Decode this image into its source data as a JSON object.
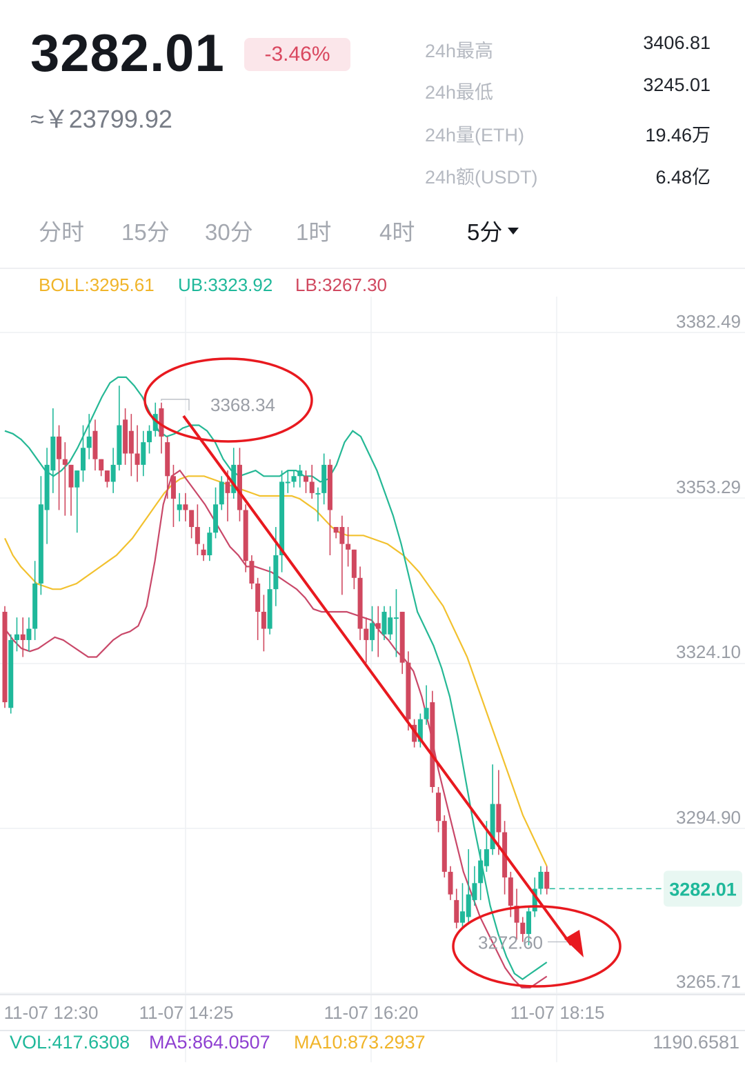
{
  "header": {
    "price": "3282.01",
    "change": "-3.46%",
    "cny": "≈￥23799.92",
    "stats": [
      {
        "label": "24h最高",
        "value": "3406.81"
      },
      {
        "label": "24h最低",
        "value": "3245.01"
      },
      {
        "label": "24h量(ETH)",
        "value": "19.46万"
      },
      {
        "label": "24h额(USDT)",
        "value": "6.48亿"
      }
    ]
  },
  "tabs": [
    "分时",
    "15分",
    "30分",
    "1时",
    "4时",
    "5分"
  ],
  "active_tab": "5分",
  "indicators": {
    "boll": "BOLL:3295.61",
    "ub": "UB:3323.92",
    "lb": "LB:3267.30"
  },
  "volume": {
    "vol": "VOL:417.6308",
    "ma5": "MA5:864.0507",
    "ma10": "MA10:873.2937",
    "max": "1190.6581"
  },
  "colors": {
    "up": "#1fb89a",
    "down": "#d0485f",
    "boll": "#f2c12e",
    "ub": "#25b895",
    "lb": "#c94869",
    "annotation": "#e8191f"
  },
  "chart_data": {
    "type": "candlestick",
    "y_ticks": [
      "3382.49",
      "3353.29",
      "3324.10",
      "3294.90",
      "3265.71"
    ],
    "y_tick_values": [
      3382.49,
      3353.29,
      3324.1,
      3294.9,
      3265.71
    ],
    "x_ticks": [
      "11-07 12:30",
      "11-07 14:25",
      "11-07 16:20",
      "11-07 18:15"
    ],
    "current_price_label": "3282.01",
    "current_price": 3282.01,
    "high_marker": {
      "label": "3368.34",
      "value": 3368.34
    },
    "low_marker": {
      "label": "3272.60",
      "value": 3272.6
    },
    "candles": [
      [
        3331.0,
        3315.0,
        3332.0,
        3314.0
      ],
      [
        3314.0,
        3326.0,
        3327.0,
        3313.0
      ],
      [
        3326.0,
        3327.0,
        3330.0,
        3324.0
      ],
      [
        3327.0,
        3326.0,
        3330.0,
        3323.0
      ],
      [
        3326.0,
        3328.0,
        3330.0,
        3324.0
      ],
      [
        3328.0,
        3336.0,
        3340.0,
        3326.0
      ],
      [
        3336.0,
        3350.0,
        3355.0,
        3334.0
      ],
      [
        3349.0,
        3357.0,
        3360.0,
        3343.0
      ],
      [
        3356.0,
        3362.0,
        3367.0,
        3352.0
      ],
      [
        3362.0,
        3358.0,
        3364.0,
        3349.0
      ],
      [
        3358.0,
        3357.0,
        3361.0,
        3348.0
      ],
      [
        3357.0,
        3353.0,
        3357.0,
        3348.0
      ],
      [
        3353.0,
        3356.0,
        3356.0,
        3345.0
      ],
      [
        3356.0,
        3360.0,
        3364.0,
        3354.0
      ],
      [
        3360.0,
        3362.0,
        3366.0,
        3358.0
      ],
      [
        3363.0,
        3358.0,
        3365.0,
        3356.0
      ],
      [
        3358.0,
        3356.0,
        3358.0,
        3355.0
      ],
      [
        3356.0,
        3354.0,
        3356.0,
        3353.0
      ],
      [
        3354.0,
        3357.0,
        3360.0,
        3352.0
      ],
      [
        3357.0,
        3364.0,
        3371.0,
        3356.0
      ],
      [
        3365.0,
        3359.0,
        3367.0,
        3357.0
      ],
      [
        3363.0,
        3359.0,
        3366.0,
        3355.0
      ],
      [
        3359.0,
        3357.0,
        3364.0,
        3354.0
      ],
      [
        3357.0,
        3361.0,
        3363.0,
        3355.0
      ],
      [
        3361.0,
        3363.0,
        3364.0,
        3359.0
      ],
      [
        3363.0,
        3366.0,
        3368.0,
        3362.0
      ],
      [
        3367.0,
        3362.0,
        3368.0,
        3359.0
      ],
      [
        3361.0,
        3355.0,
        3362.0,
        3351.0
      ],
      [
        3355.0,
        3351.0,
        3357.0,
        3346.0
      ],
      [
        3349.0,
        3350.0,
        3352.0,
        3347.0
      ],
      [
        3350.0,
        3349.0,
        3352.0,
        3347.0
      ],
      [
        3349.0,
        3346.0,
        3349.0,
        3344.0
      ],
      [
        3346.0,
        3343.0,
        3350.0,
        3341.0
      ],
      [
        3342.0,
        3341.0,
        3343.0,
        3340.0
      ],
      [
        3341.0,
        3345.0,
        3346.0,
        3340.0
      ],
      [
        3345.0,
        3350.0,
        3353.0,
        3344.0
      ],
      [
        3350.0,
        3354.0,
        3355.0,
        3349.0
      ],
      [
        3354.0,
        3352.0,
        3356.0,
        3347.0
      ],
      [
        3352.0,
        3357.0,
        3360.0,
        3351.0
      ],
      [
        3357.0,
        3349.0,
        3360.0,
        3347.0
      ],
      [
        3349.0,
        3340.0,
        3350.0,
        3338.0
      ],
      [
        3340.0,
        3336.0,
        3341.0,
        3335.0
      ],
      [
        3336.0,
        3331.0,
        3337.0,
        3326.0
      ],
      [
        3331.0,
        3328.0,
        3334.0,
        3324.0
      ],
      [
        3328.0,
        3335.0,
        3339.0,
        3327.0
      ],
      [
        3335.0,
        3341.0,
        3346.0,
        3332.0
      ],
      [
        3341.0,
        3354.0,
        3356.0,
        3338.0
      ],
      [
        3354.0,
        3354.0,
        3356.0,
        3352.0
      ],
      [
        3354.0,
        3355.0,
        3356.0,
        3353.0
      ],
      [
        3355.0,
        3356.0,
        3357.0,
        3353.0
      ],
      [
        3355.0,
        3354.0,
        3356.0,
        3352.0
      ],
      [
        3354.0,
        3352.0,
        3357.0,
        3351.0
      ],
      [
        3352.0,
        3352.0,
        3353.0,
        3347.0
      ],
      [
        3352.0,
        3357.0,
        3359.0,
        3350.0
      ],
      [
        3357.0,
        3349.0,
        3358.0,
        3341.0
      ],
      [
        3346.0,
        3345.0,
        3346.0,
        3344.0
      ],
      [
        3346.0,
        3343.0,
        3348.0,
        3334.0
      ],
      [
        3343.0,
        3342.0,
        3346.0,
        3339.0
      ],
      [
        3342.0,
        3337.0,
        3342.0,
        3335.0
      ],
      [
        3337.0,
        3328.0,
        3339.0,
        3326.0
      ],
      [
        3328.0,
        3326.0,
        3330.0,
        3322.0
      ],
      [
        3326.0,
        3329.0,
        3332.0,
        3324.0
      ],
      [
        3329.0,
        3328.0,
        3332.0,
        3323.0
      ],
      [
        3327.0,
        3331.0,
        3332.0,
        3326.0
      ],
      [
        3327.0,
        3330.0,
        3332.0,
        3326.0
      ],
      [
        3330.0,
        3330.0,
        3335.0,
        3323.0
      ],
      [
        3331.0,
        3322.0,
        3331.0,
        3320.0
      ],
      [
        3322.0,
        3312.0,
        3324.0,
        3310.0
      ],
      [
        3311.0,
        3308.0,
        3312.0,
        3307.0
      ],
      [
        3308.0,
        3312.0,
        3313.0,
        3307.0
      ],
      [
        3312.0,
        3314.0,
        3318.0,
        3311.0
      ],
      [
        3315.0,
        3300.0,
        3317.0,
        3299.0
      ],
      [
        3299.0,
        3294.0,
        3300.0,
        3292.0
      ],
      [
        3294.0,
        3285.0,
        3295.0,
        3284.0
      ],
      [
        3285.0,
        3281.0,
        3286.0,
        3280.0
      ],
      [
        3280.0,
        3276.0,
        3282.0,
        3275.0
      ],
      [
        3276.0,
        3278.0,
        3283.0,
        3275.0
      ],
      [
        3277.0,
        3281.0,
        3289.0,
        3276.0
      ],
      [
        3280.0,
        3283.0,
        3286.0,
        3279.0
      ],
      [
        3283.0,
        3287.0,
        3289.0,
        3280.0
      ],
      [
        3286.0,
        3289.0,
        3294.0,
        3285.0
      ],
      [
        3289.0,
        3297.0,
        3304.0,
        3288.0
      ],
      [
        3297.0,
        3292.0,
        3303.0,
        3288.0
      ],
      [
        3292.0,
        3284.0,
        3294.0,
        3281.0
      ],
      [
        3284.0,
        3279.0,
        3285.0,
        3277.0
      ],
      [
        3279.0,
        3276.0,
        3282.0,
        3273.0
      ],
      [
        3276.0,
        3274.0,
        3277.0,
        3272.6
      ],
      [
        3274.0,
        3278.0,
        3279.0,
        3272.0
      ],
      [
        3278.0,
        3282.0,
        3284.0,
        3277.0
      ],
      [
        3282.0,
        3285.0,
        3286.0,
        3281.0
      ],
      [
        3285.0,
        3282.0,
        3286.0,
        3281.0
      ]
    ],
    "ma_series": [
      {
        "name": "BOLL",
        "values": [
          3344,
          3341,
          3339,
          3337.5,
          3336,
          3335.5,
          3335,
          3335,
          3335.5,
          3336,
          3337,
          3338,
          3339,
          3340,
          3341,
          3342.5,
          3344,
          3346,
          3348,
          3350,
          3352,
          3353.5,
          3354.5,
          3355,
          3355,
          3355,
          3354.5,
          3354,
          3353.5,
          3353,
          3352.5,
          3352,
          3351.5,
          3351.5,
          3351.5,
          3351.5,
          3351.5,
          3351,
          3350,
          3349,
          3347.5,
          3346,
          3345,
          3344.5,
          3344.5,
          3344.5,
          3344,
          3343.5,
          3343,
          3342,
          3341,
          3339.5,
          3338,
          3336,
          3334,
          3332,
          3329,
          3326,
          3323,
          3319,
          3315,
          3311,
          3307,
          3303,
          3299,
          3295,
          3292,
          3289,
          3286
        ]
      },
      {
        "name": "UB",
        "values": [
          3363,
          3362.5,
          3361.5,
          3360,
          3358,
          3356,
          3355,
          3356,
          3357.5,
          3360,
          3363,
          3366,
          3369,
          3371.5,
          3372.5,
          3372.5,
          3371,
          3369,
          3366,
          3363,
          3362,
          3362.5,
          3363.5,
          3364,
          3364,
          3363,
          3361,
          3358,
          3356,
          3355,
          3355.5,
          3356,
          3355,
          3355,
          3355,
          3356,
          3356,
          3355,
          3355,
          3354,
          3354.5,
          3357,
          3361,
          3363,
          3362,
          3359,
          3356,
          3352,
          3348,
          3343,
          3337,
          3331,
          3328,
          3325,
          3321,
          3316,
          3309,
          3301,
          3293,
          3286,
          3279,
          3274,
          3270,
          3267,
          3266,
          3267,
          3268,
          3269
        ]
      },
      {
        "name": "LB",
        "values": [
          3328,
          3326,
          3324.5,
          3324,
          3324.5,
          3325.5,
          3326.5,
          3326,
          3325,
          3324,
          3323,
          3323,
          3324.5,
          3326,
          3327,
          3327.5,
          3328.5,
          3332,
          3340,
          3350,
          3355,
          3356,
          3354,
          3352,
          3350,
          3347.5,
          3345,
          3342.5,
          3341,
          3339,
          3339,
          3338.5,
          3338,
          3337,
          3336,
          3335,
          3333.5,
          3331.5,
          3331,
          3331,
          3331,
          3331,
          3330.5,
          3330,
          3329.5,
          3327.5,
          3326,
          3324,
          3322.5,
          3320.5,
          3316,
          3310,
          3303,
          3297,
          3291,
          3285,
          3281,
          3277,
          3274,
          3271,
          3268,
          3266,
          3264.5,
          3264.5,
          3265.5,
          3266.5
        ]
      }
    ]
  }
}
